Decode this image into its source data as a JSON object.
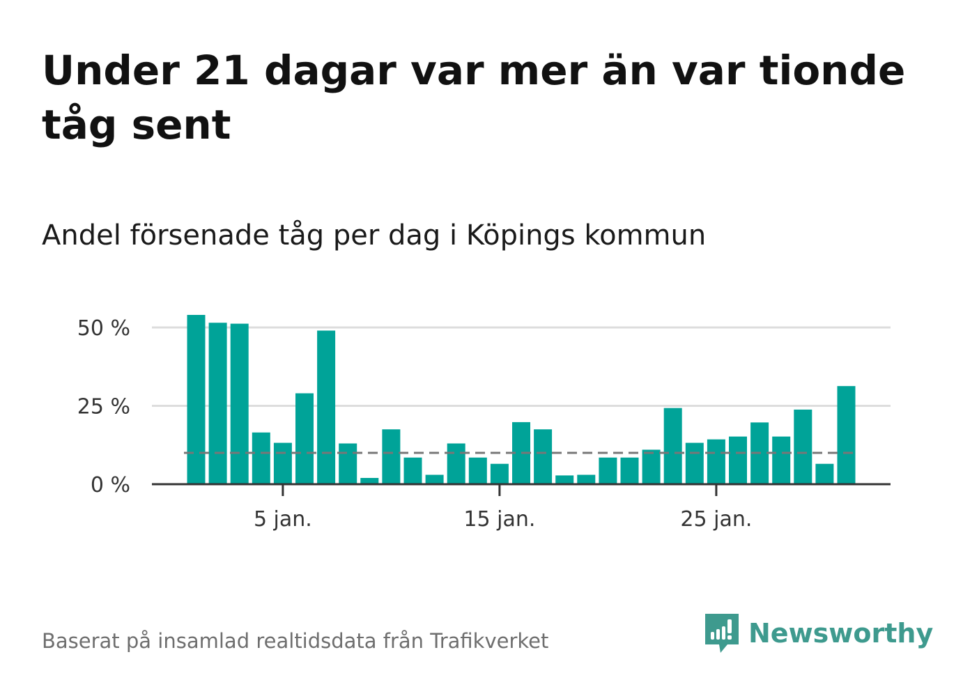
{
  "title": "Under 21 dagar var mer än var tionde tåg sent",
  "subtitle": "Andel försenade tåg per dag i Köpings kommun",
  "footer": "Baserat på insamlad realtidsdata från Trafikverket",
  "logo": {
    "text": "Newsworthy",
    "icon": "speech-bubble-bar-chart-icon"
  },
  "colors": {
    "bar": "#00a398",
    "reference_line": "#777777",
    "grid": "#dddddd",
    "axis": "#333333",
    "logo": "#3e9a8e"
  },
  "chart_data": {
    "type": "bar",
    "categories": [
      "1 jan.",
      "2 jan.",
      "3 jan.",
      "4 jan.",
      "5 jan.",
      "6 jan.",
      "7 jan.",
      "8 jan.",
      "9 jan.",
      "10 jan.",
      "11 jan.",
      "12 jan.",
      "13 jan.",
      "14 jan.",
      "15 jan.",
      "16 jan.",
      "17 jan.",
      "18 jan.",
      "19 jan.",
      "20 jan.",
      "21 jan.",
      "22 jan.",
      "23 jan.",
      "24 jan.",
      "25 jan.",
      "26 jan.",
      "27 jan.",
      "28 jan.",
      "29 jan.",
      "30 jan.",
      "31 jan."
    ],
    "values": [
      54,
      51.5,
      51.2,
      16.5,
      13.2,
      29,
      49,
      13,
      2,
      17.5,
      8.5,
      3,
      13,
      8.5,
      6.5,
      19.8,
      17.5,
      2.8,
      3,
      8.5,
      8.5,
      11,
      24.3,
      13.2,
      14.3,
      15.2,
      19.7,
      15.2,
      23.8,
      6.5,
      31.3
    ],
    "x_ticks": [
      "5 jan.",
      "15 jan.",
      "25 jan."
    ],
    "y_ticks": [
      "0 %",
      "25 %",
      "50 %"
    ],
    "y_tick_values": [
      0,
      25,
      50
    ],
    "ylim": [
      0,
      55
    ],
    "reference_value": 10,
    "grid": true,
    "xlabel": "",
    "ylabel": ""
  }
}
